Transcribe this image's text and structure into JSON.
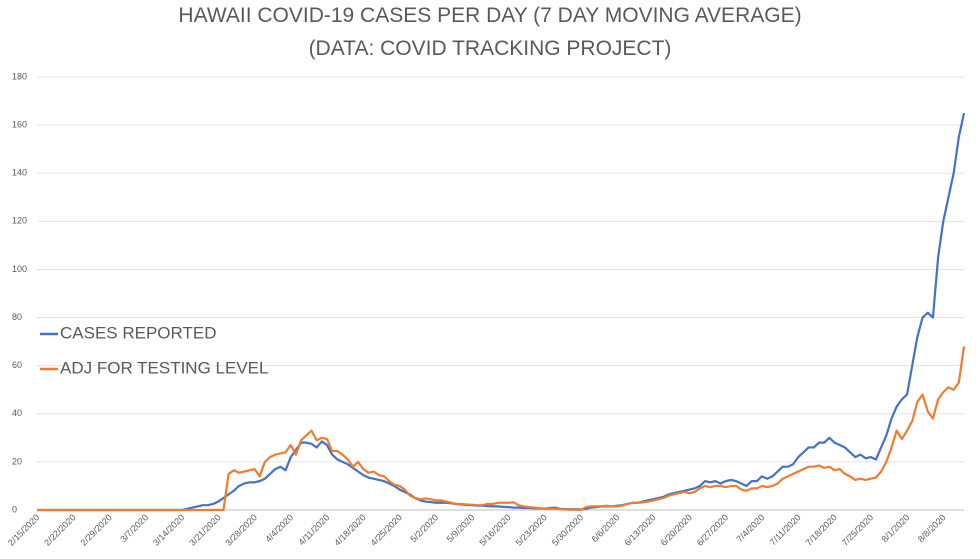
{
  "chart_data": {
    "type": "line",
    "title": "HAWAII COVID-19 CASES PER DAY (7 DAY MOVING AVERAGE)",
    "subtitle": "(DATA: COVID TRACKING PROJECT)",
    "categories": [
      "2/15/2020",
      null,
      null,
      null,
      null,
      null,
      null,
      "2/22/2020",
      null,
      null,
      null,
      null,
      null,
      null,
      "2/29/2020",
      null,
      null,
      null,
      null,
      null,
      null,
      "3/7/2020",
      null,
      null,
      null,
      null,
      null,
      null,
      "3/14/2020",
      null,
      null,
      null,
      null,
      null,
      null,
      "3/21/2020",
      null,
      null,
      null,
      null,
      null,
      null,
      "3/28/2020",
      null,
      null,
      null,
      null,
      null,
      null,
      "4/4/2020",
      null,
      null,
      null,
      null,
      null,
      null,
      "4/11/2020",
      null,
      null,
      null,
      null,
      null,
      null,
      "4/18/2020",
      null,
      null,
      null,
      null,
      null,
      null,
      "4/25/2020",
      null,
      null,
      null,
      null,
      null,
      null,
      "5/2/2020",
      null,
      null,
      null,
      null,
      null,
      null,
      "5/9/2020",
      null,
      null,
      null,
      null,
      null,
      null,
      "5/16/2020",
      null,
      null,
      null,
      null,
      null,
      null,
      "5/23/2020",
      null,
      null,
      null,
      null,
      null,
      null,
      "5/30/2020",
      null,
      null,
      null,
      null,
      null,
      null,
      "6/6/2020",
      null,
      null,
      null,
      null,
      null,
      null,
      "6/13/2020",
      null,
      null,
      null,
      null,
      null,
      null,
      "6/20/2020",
      null,
      null,
      null,
      null,
      null,
      null,
      "6/27/2020",
      null,
      null,
      null,
      null,
      null,
      null,
      "7/4/2020",
      null,
      null,
      null,
      null,
      null,
      null,
      "7/11/2020",
      null,
      null,
      null,
      null,
      null,
      null,
      "7/18/2020",
      null,
      null,
      null,
      null,
      null,
      null,
      "7/25/2020",
      null,
      null,
      null,
      null,
      null,
      null,
      "8/1/2020",
      null,
      null,
      null,
      null,
      null,
      null,
      "8/8/2020",
      null,
      null,
      null,
      null
    ],
    "series": [
      {
        "name": "CASES REPORTED",
        "color": "#4472c4",
        "values": [
          0,
          0,
          0,
          0,
          0,
          0,
          0,
          0,
          0,
          0,
          0,
          0,
          0,
          0,
          0,
          0,
          0,
          0,
          0,
          0,
          0,
          0,
          0,
          0,
          0,
          0,
          0,
          0,
          0,
          0.5,
          1,
          1.5,
          2,
          2,
          2.5,
          3.5,
          5,
          6.5,
          8,
          10,
          11,
          11.5,
          11.5,
          12,
          13,
          15,
          17,
          18,
          16.5,
          22,
          25,
          28,
          28,
          27.5,
          26,
          28.5,
          27,
          23,
          21,
          20,
          19,
          17.5,
          16,
          14.5,
          13.5,
          13,
          12.5,
          12,
          11,
          10,
          8.5,
          7.5,
          6.5,
          5,
          4,
          3.5,
          3.3,
          3,
          3,
          3,
          2.8,
          2.5,
          2.3,
          2,
          2,
          1.8,
          1.8,
          1.6,
          1.5,
          1.5,
          1.3,
          1.2,
          1,
          1,
          0.8,
          0.8,
          0.7,
          0.7,
          0.6,
          0.8,
          1,
          0.5,
          0.4,
          0.3,
          0.3,
          0.2,
          0.5,
          1,
          1.2,
          1.5,
          1.5,
          1.5,
          1.8,
          2,
          2.5,
          3,
          3,
          3.5,
          4,
          4.5,
          5,
          5.5,
          6.5,
          7,
          7.5,
          8,
          8.5,
          9,
          10,
          12,
          11.5,
          12,
          11,
          12,
          12.5,
          12,
          11,
          10,
          12,
          12,
          14,
          13,
          14,
          16,
          18,
          18,
          19,
          22,
          24,
          26,
          26,
          28,
          28,
          30,
          28,
          27,
          26,
          24,
          22,
          23,
          21.5,
          22,
          21,
          26,
          31,
          38,
          43,
          46,
          48,
          60,
          72,
          80,
          82,
          80,
          105,
          120,
          130,
          140,
          155,
          165
        ]
      },
      {
        "name": "ADJ FOR TESTING LEVEL",
        "color": "#ed7d31",
        "values": [
          0,
          0,
          0,
          0,
          0,
          0,
          0,
          0,
          0,
          0,
          0,
          0,
          0,
          0,
          0,
          0,
          0,
          0,
          0,
          0,
          0,
          0,
          0,
          0,
          0,
          0,
          0,
          0,
          0,
          0,
          0,
          0,
          0,
          0,
          0,
          0,
          0,
          15,
          16.5,
          15.5,
          16,
          16.5,
          17,
          14,
          20,
          22,
          23,
          23.5,
          24,
          27,
          23,
          29,
          31,
          33,
          29,
          30,
          29.5,
          24.5,
          24.5,
          23,
          21,
          18,
          20,
          17,
          15.5,
          16,
          14.5,
          14,
          12,
          10.5,
          10,
          8.5,
          6,
          5,
          4.5,
          4.8,
          4.5,
          4,
          4,
          3.5,
          3,
          2.5,
          2.5,
          2.3,
          2.2,
          2,
          2,
          2.5,
          2.5,
          3,
          3,
          3,
          3.2,
          2,
          1.5,
          1.2,
          1,
          0.8,
          0.5,
          0.5,
          0.5,
          0.3,
          0.2,
          0.1,
          0.1,
          0,
          1.2,
          1.5,
          1.5,
          1.5,
          1.8,
          1.5,
          1.5,
          1.8,
          2.5,
          3,
          3,
          3.2,
          3.5,
          4,
          4.5,
          5,
          6,
          6.5,
          7,
          7.5,
          7,
          7.5,
          9,
          10,
          9.5,
          10,
          10,
          9.5,
          10,
          10,
          8.5,
          8,
          9,
          9,
          10,
          9.5,
          10,
          11,
          13,
          14,
          15,
          16,
          17,
          18,
          18,
          18.5,
          17.5,
          18,
          16.5,
          17,
          15,
          14,
          12.5,
          13,
          12.5,
          13,
          13.5,
          16,
          20,
          26,
          33,
          29.5,
          33,
          37,
          45,
          48,
          41,
          38,
          46,
          49,
          51,
          50,
          53,
          68
        ]
      }
    ],
    "ylim": [
      0,
      180
    ],
    "yticks": [
      0,
      20,
      40,
      60,
      80,
      100,
      120,
      140,
      160,
      180
    ],
    "grid": true
  }
}
